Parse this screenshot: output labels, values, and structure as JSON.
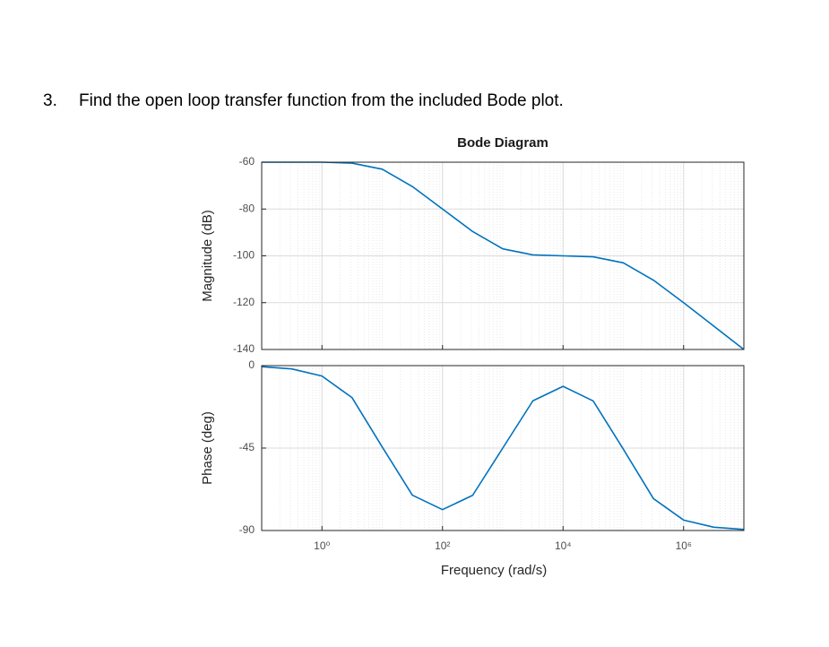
{
  "question": {
    "number": "3.",
    "text": "Find the open loop transfer function from the included Bode plot."
  },
  "chart_data": [
    {
      "type": "line",
      "title": "Bode Diagram",
      "y_label": "Magnitude (dB)",
      "xscale": "log",
      "grid": true,
      "color": "#0072bd",
      "x": [
        0.1,
        0.316,
        1,
        3.16,
        10,
        31.6,
        100,
        316,
        1000,
        3162,
        10000,
        31623,
        100000,
        316228,
        1000000,
        3162278,
        10000000
      ],
      "values": [
        -60.0,
        -60.0,
        -60.0,
        -60.4,
        -63.0,
        -70.4,
        -80.0,
        -89.6,
        -97.0,
        -99.6,
        -100.0,
        -100.4,
        -103.0,
        -110.4,
        -120.0,
        -130.0,
        -140.0
      ],
      "xlim": [
        0.1,
        10000000
      ],
      "xticks": [
        1,
        100,
        10000,
        1000000
      ],
      "ylim": [
        -140,
        -60
      ],
      "yticks": [
        -60,
        -80,
        -100,
        -120,
        -140
      ]
    },
    {
      "type": "line",
      "y_label": "Phase (deg)",
      "x_label": "Frequency (rad/s)",
      "xscale": "log",
      "grid": true,
      "color": "#0072bd",
      "x": [
        0.1,
        0.316,
        1,
        3.16,
        10,
        31.6,
        100,
        316,
        1000,
        3162,
        10000,
        31623,
        100000,
        316228,
        1000000,
        3162278,
        10000000
      ],
      "values": [
        -0.6,
        -1.8,
        -5.7,
        -17.5,
        -44.4,
        -70.7,
        -78.6,
        -70.8,
        -45.0,
        -19.2,
        -11.3,
        -19.3,
        -45.6,
        -72.6,
        -84.3,
        -88.2,
        -89.4
      ],
      "xlim": [
        0.1,
        10000000
      ],
      "xticks": [
        {
          "value": 1,
          "label": "10⁰"
        },
        {
          "value": 100,
          "label": "10²"
        },
        {
          "value": 10000,
          "label": "10⁴"
        },
        {
          "value": 1000000,
          "label": "10⁶"
        }
      ],
      "ylim": [
        -90,
        0
      ],
      "yticks": [
        0,
        -45,
        -90
      ]
    }
  ]
}
